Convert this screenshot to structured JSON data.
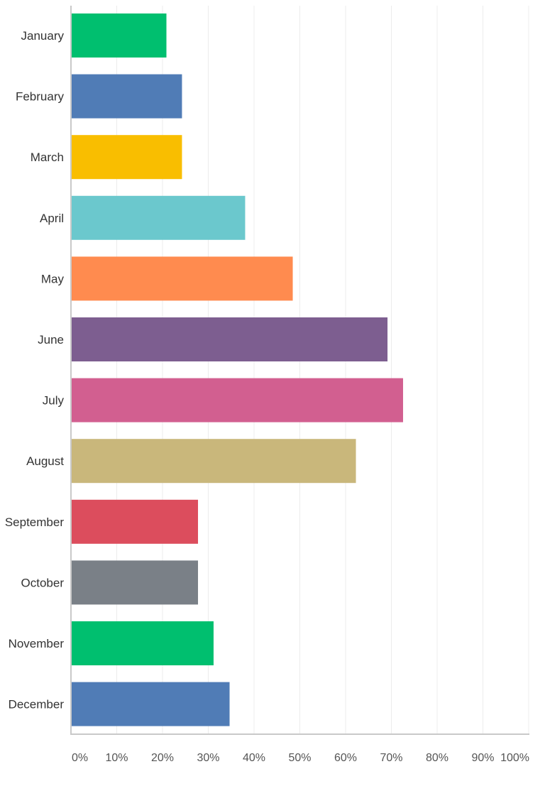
{
  "chart_data": {
    "type": "bar",
    "orientation": "horizontal",
    "categories": [
      "January",
      "February",
      "March",
      "April",
      "May",
      "June",
      "July",
      "August",
      "September",
      "October",
      "November",
      "December"
    ],
    "values": [
      20.7,
      24.1,
      24.1,
      37.9,
      48.3,
      69.0,
      72.4,
      62.1,
      27.6,
      27.6,
      31.0,
      34.5
    ],
    "colors": [
      "#00bf6f",
      "#507cb6",
      "#f9be00",
      "#6bc8cd",
      "#ff8b4f",
      "#7d5e90",
      "#d25f90",
      "#c9b77b",
      "#dc4d5d",
      "#7a8087",
      "#00bf6f",
      "#507cb6"
    ],
    "xlim": [
      0,
      100
    ],
    "x_ticks": [
      "0%",
      "10%",
      "20%",
      "30%",
      "40%",
      "50%",
      "60%",
      "70%",
      "80%",
      "90%",
      "100%"
    ],
    "grid": "vertical",
    "title": "",
    "xlabel": "",
    "ylabel": ""
  }
}
